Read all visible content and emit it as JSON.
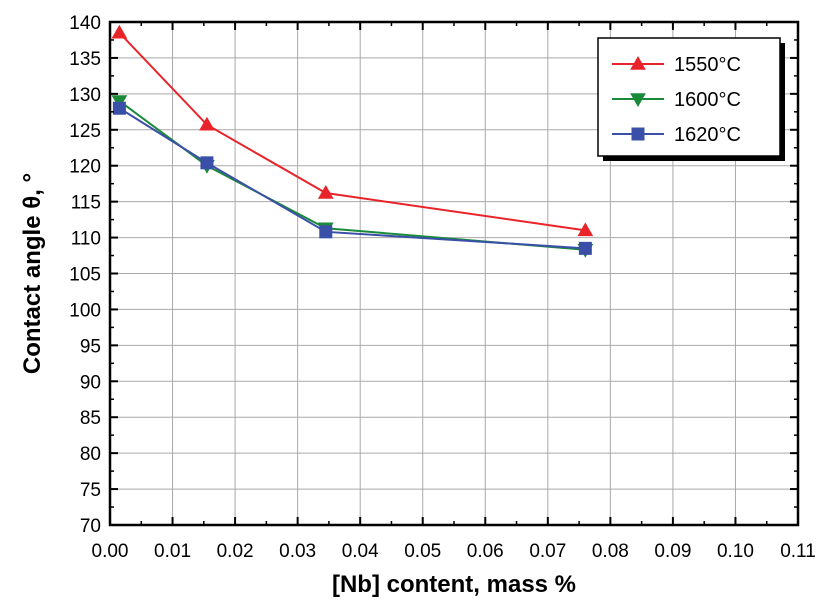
{
  "chart_data": {
    "type": "line",
    "title": "",
    "xlabel": "[Nb] content, mass %",
    "ylabel": "Contact angle θ, °",
    "xlim": [
      0.0,
      0.11
    ],
    "ylim": [
      70,
      140
    ],
    "x_ticks": [
      "0.00",
      "0.01",
      "0.02",
      "0.03",
      "0.04",
      "0.05",
      "0.06",
      "0.07",
      "0.08",
      "0.09",
      "0.10",
      "0.11"
    ],
    "y_ticks": [
      "70",
      "75",
      "80",
      "85",
      "90",
      "95",
      "100",
      "105",
      "110",
      "115",
      "120",
      "125",
      "130",
      "135",
      "140"
    ],
    "grid": true,
    "legend_position": "top-right",
    "x": [
      0.0015,
      0.0155,
      0.0345,
      0.076
    ],
    "series": [
      {
        "name": "1550°C",
        "values": [
          138.5,
          125.7,
          116.2,
          111.0
        ],
        "color": "#e8242a",
        "marker": "triangle-up"
      },
      {
        "name": "1600°C",
        "values": [
          129.0,
          120.0,
          111.3,
          108.3
        ],
        "color": "#1a8a3a",
        "marker": "triangle-down"
      },
      {
        "name": "1620°C",
        "values": [
          128.0,
          120.4,
          110.8,
          108.5
        ],
        "color": "#3a4fa8",
        "marker": "square"
      }
    ]
  }
}
